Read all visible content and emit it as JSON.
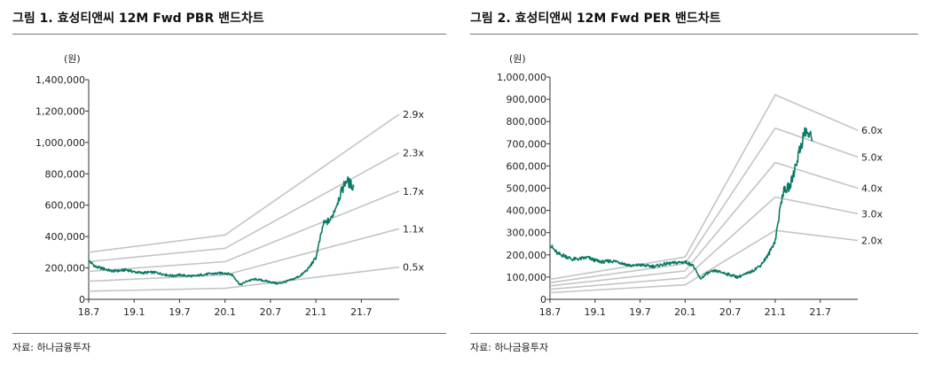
{
  "charts": [
    {
      "title": "그림 1.  효성티앤씨 12M Fwd PBR 밴드차트",
      "source": "자료: 하나금융투자",
      "unit": "(원)",
      "y_ticks": [
        "1,400,000",
        "1,200,000",
        "1,000,000",
        "800,000",
        "600,000",
        "400,000",
        "200,000",
        "0"
      ],
      "x_ticks": [
        "18.7",
        "19.1",
        "19.7",
        "20.1",
        "20.7",
        "21.1",
        "21.7"
      ]
    },
    {
      "title": "그림 2.  효성티앤씨 12M Fwd PER 밴드차트",
      "source": "자료: 하나금융투자",
      "unit": "(원)",
      "y_ticks": [
        "1,000,000",
        "900,000",
        "800,000",
        "700,000",
        "600,000",
        "500,000",
        "400,000",
        "300,000",
        "200,000",
        "100,000",
        "0"
      ],
      "x_ticks": [
        "18.7",
        "19.1",
        "19.7",
        "20.1",
        "20.7",
        "21.1",
        "21.7"
      ]
    }
  ],
  "chart_data": [
    {
      "type": "line",
      "title": "그림 1.  효성티앤씨 12M Fwd PBR 밴드차트",
      "ylabel": "(원)",
      "ylim": [
        0,
        1400000
      ],
      "xlim": [
        "2018-07",
        "2021-12"
      ],
      "grid": false,
      "legend": "inline-right",
      "x_tick_labels": [
        "18.7",
        "19.1",
        "19.7",
        "20.1",
        "20.7",
        "21.1",
        "21.7"
      ],
      "band_x": [
        "2018-07",
        "2020-01",
        "2021-12"
      ],
      "bands": [
        {
          "name": "2.9x",
          "values": [
            300000,
            410000,
            1180000
          ]
        },
        {
          "name": "2.3x",
          "values": [
            240000,
            325000,
            935000
          ]
        },
        {
          "name": "1.7x",
          "values": [
            178000,
            240000,
            690000
          ]
        },
        {
          "name": "1.1x",
          "values": [
            115000,
            155000,
            450000
          ]
        },
        {
          "name": "0.5x",
          "values": [
            52000,
            70000,
            205000
          ]
        }
      ],
      "price_series": {
        "x": [
          "2018-07",
          "2018-08",
          "2018-09",
          "2018-10",
          "2018-11",
          "2018-12",
          "2019-01",
          "2019-02",
          "2019-03",
          "2019-04",
          "2019-05",
          "2019-06",
          "2019-07",
          "2019-08",
          "2019-09",
          "2019-10",
          "2019-11",
          "2019-12",
          "2020-01",
          "2020-02",
          "2020-03",
          "2020-04",
          "2020-05",
          "2020-06",
          "2020-07",
          "2020-08",
          "2020-09",
          "2020-10",
          "2020-11",
          "2020-12",
          "2021-01",
          "2021-02",
          "2021-03",
          "2021-04",
          "2021-05",
          "2021-06"
        ],
        "values": [
          245000,
          205000,
          195000,
          180000,
          182000,
          188000,
          175000,
          168000,
          172000,
          170000,
          158000,
          150000,
          155000,
          150000,
          148000,
          157000,
          162000,
          165000,
          168000,
          155000,
          92000,
          118000,
          128000,
          120000,
          110000,
          100000,
          112000,
          128000,
          152000,
          195000,
          265000,
          480000,
          510000,
          640000,
          760000,
          715000
        ]
      }
    },
    {
      "type": "line",
      "title": "그림 2.  효성티앤씨 12M Fwd PER 밴드차트",
      "ylabel": "(원)",
      "ylim": [
        0,
        1000000
      ],
      "xlim": [
        "2018-07",
        "2021-12"
      ],
      "grid": false,
      "legend": "inline-right",
      "x_tick_labels": [
        "18.7",
        "19.1",
        "19.7",
        "20.1",
        "20.7",
        "21.1",
        "21.7"
      ],
      "band_x": [
        "2018-07",
        "2020-01",
        "2021-01",
        "2021-12"
      ],
      "bands": [
        {
          "name": "6.0x",
          "values": [
            90000,
            190000,
            920000,
            760000
          ]
        },
        {
          "name": "5.0x",
          "values": [
            75000,
            160000,
            770000,
            640000
          ]
        },
        {
          "name": "4.0x",
          "values": [
            60000,
            128000,
            615000,
            500000
          ]
        },
        {
          "name": "3.0x",
          "values": [
            45000,
            96000,
            460000,
            385000
          ]
        },
        {
          "name": "2.0x",
          "values": [
            30000,
            65000,
            310000,
            265000
          ]
        }
      ],
      "price_series": {
        "x": [
          "2018-07",
          "2018-08",
          "2018-09",
          "2018-10",
          "2018-11",
          "2018-12",
          "2019-01",
          "2019-02",
          "2019-03",
          "2019-04",
          "2019-05",
          "2019-06",
          "2019-07",
          "2019-08",
          "2019-09",
          "2019-10",
          "2019-11",
          "2019-12",
          "2020-01",
          "2020-02",
          "2020-03",
          "2020-04",
          "2020-05",
          "2020-06",
          "2020-07",
          "2020-08",
          "2020-09",
          "2020-10",
          "2020-11",
          "2020-12",
          "2021-01",
          "2021-02",
          "2021-03",
          "2021-04",
          "2021-05",
          "2021-06"
        ],
        "values": [
          245000,
          205000,
          195000,
          180000,
          182000,
          188000,
          175000,
          168000,
          172000,
          170000,
          158000,
          150000,
          155000,
          150000,
          148000,
          157000,
          162000,
          165000,
          168000,
          155000,
          92000,
          118000,
          128000,
          120000,
          110000,
          100000,
          112000,
          128000,
          152000,
          195000,
          265000,
          480000,
          510000,
          640000,
          760000,
          715000
        ]
      }
    }
  ]
}
